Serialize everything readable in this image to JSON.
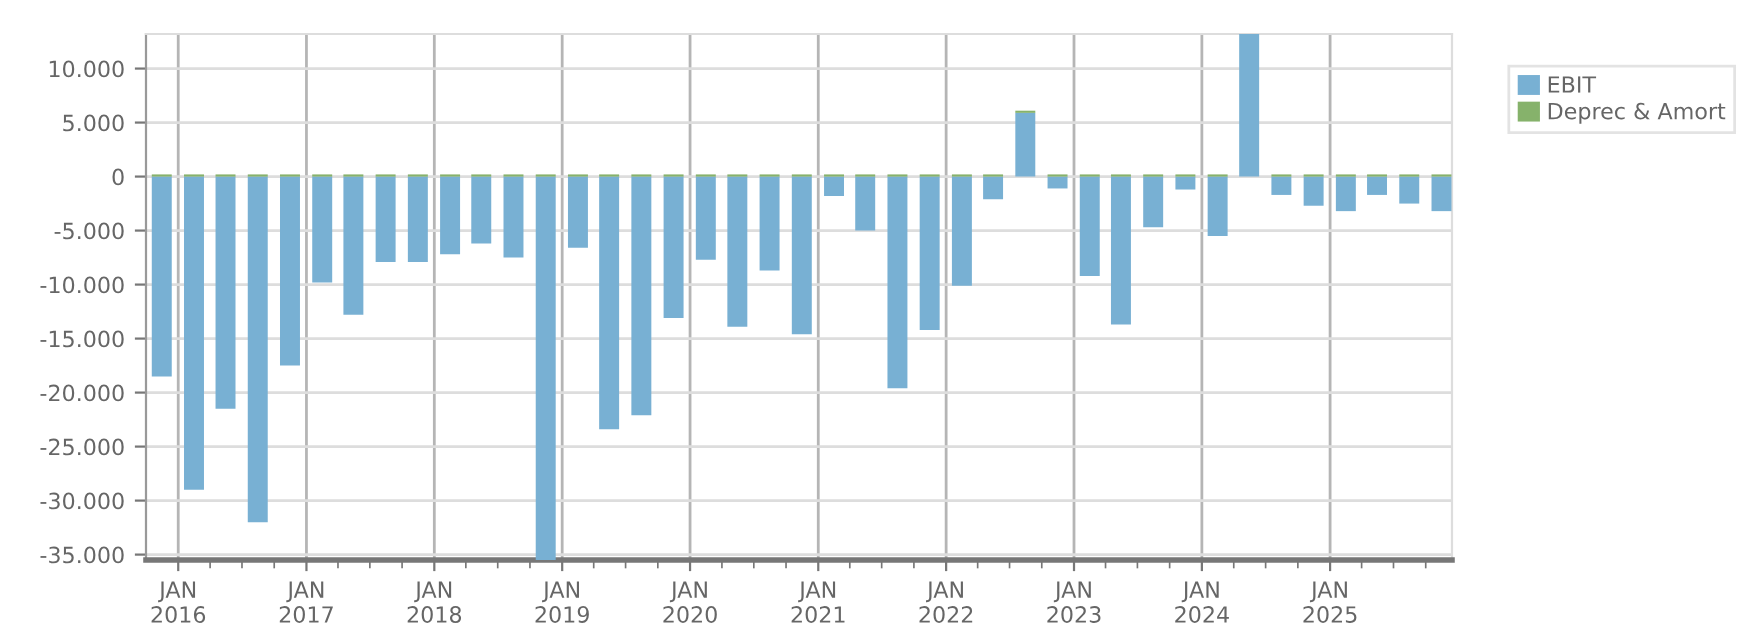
{
  "chart_data": {
    "type": "bar",
    "stacked": true,
    "x": [
      "2015-11-15",
      "2016-02-15",
      "2016-05-15",
      "2016-08-15",
      "2016-11-15",
      "2017-02-15",
      "2017-05-15",
      "2017-08-15",
      "2017-11-15",
      "2018-02-15",
      "2018-05-15",
      "2018-08-15",
      "2018-11-15",
      "2019-02-15",
      "2019-05-15",
      "2019-08-15",
      "2019-11-15",
      "2020-02-15",
      "2020-05-15",
      "2020-08-15",
      "2020-11-15",
      "2021-02-15",
      "2021-05-15",
      "2021-08-15",
      "2021-11-15",
      "2022-02-15",
      "2022-05-15",
      "2022-08-15",
      "2022-11-15",
      "2023-02-15",
      "2023-05-15",
      "2023-08-15",
      "2023-11-15",
      "2024-02-15",
      "2024-05-15",
      "2024-08-15",
      "2024-11-15",
      "2025-02-15",
      "2025-05-15",
      "2025-08-15",
      "2025-11-15"
    ],
    "series": [
      {
        "name": "EBIT",
        "color": "#78b0d3",
        "values": [
          -18500,
          -29000,
          -21500,
          -32000,
          -17500,
          -9800,
          -12800,
          -7900,
          -7900,
          -7200,
          -6200,
          -7500,
          -35500,
          -6600,
          -23400,
          -22100,
          -13100,
          -7700,
          -13900,
          -8700,
          -14600,
          -1800,
          -5000,
          -19600,
          -14200,
          -10100,
          -2100,
          5900,
          -1100,
          -9200,
          -13700,
          -4700,
          -1200,
          -5500,
          13200,
          -1700,
          -2700,
          -3200,
          -1700,
          -2500,
          -3200
        ]
      },
      {
        "name": "Deprec & Amort",
        "color": "#86b26b",
        "values": [
          200,
          200,
          200,
          200,
          200,
          200,
          200,
          200,
          200,
          200,
          200,
          200,
          200,
          200,
          200,
          200,
          200,
          200,
          200,
          200,
          200,
          200,
          200,
          200,
          200,
          200,
          200,
          200,
          200,
          200,
          200,
          200,
          200,
          200,
          null,
          200,
          200,
          200,
          200,
          200,
          200
        ]
      }
    ],
    "ylim": [
      -35500,
      13200
    ],
    "yticks": [
      {
        "value": -35000,
        "label": "-35.000"
      },
      {
        "value": -30000,
        "label": "-30.000"
      },
      {
        "value": -25000,
        "label": "-25.000"
      },
      {
        "value": -20000,
        "label": "-20.000"
      },
      {
        "value": -15000,
        "label": "-15.000"
      },
      {
        "value": -10000,
        "label": "-10.000"
      },
      {
        "value": -5000,
        "label": "-5.000"
      },
      0,
      {
        "value": 5000,
        "label": "5.000"
      },
      {
        "value": 10000,
        "label": "10.000"
      }
    ],
    "xlim": [
      "2015-10-01",
      "2025-12-15"
    ],
    "xticks": [
      {
        "value": "2016-01-01",
        "label": "JAN\n2016"
      },
      {
        "value": "2016-04-01",
        "label": null
      },
      {
        "value": "2016-07-01",
        "label": null
      },
      {
        "value": "2016-10-01",
        "label": null
      },
      {
        "value": "2017-01-01",
        "label": "JAN\n2017"
      },
      {
        "value": "2017-04-01",
        "label": null
      },
      {
        "value": "2017-07-01",
        "label": null
      },
      {
        "value": "2017-10-01",
        "label": null
      },
      {
        "value": "2018-01-01",
        "label": "JAN\n2018"
      },
      {
        "value": "2018-04-01",
        "label": null
      },
      {
        "value": "2018-07-01",
        "label": null
      },
      {
        "value": "2018-10-01",
        "label": null
      },
      {
        "value": "2019-01-01",
        "label": "JAN\n2019"
      },
      {
        "value": "2019-04-01",
        "label": null
      },
      {
        "value": "2019-07-01",
        "label": null
      },
      {
        "value": "2019-10-01",
        "label": null
      },
      {
        "value": "2020-01-01",
        "label": "JAN\n2020"
      },
      {
        "value": "2020-04-01",
        "label": null
      },
      {
        "value": "2020-07-01",
        "label": null
      },
      {
        "value": "2020-10-01",
        "label": null
      },
      {
        "value": "2021-01-01",
        "label": "JAN\n2021"
      },
      {
        "value": "2021-04-01",
        "label": null
      },
      {
        "value": "2021-07-01",
        "label": null
      },
      {
        "value": "2021-10-01",
        "label": null
      },
      {
        "value": "2022-01-01",
        "label": "JAN\n2022"
      },
      {
        "value": "2022-04-01",
        "label": null
      },
      {
        "value": "2022-07-01",
        "label": null
      },
      {
        "value": "2022-10-01",
        "label": null
      },
      {
        "value": "2023-01-01",
        "label": "JAN\n2023"
      },
      {
        "value": "2023-04-01",
        "label": null
      },
      {
        "value": "2023-07-01",
        "label": null
      },
      {
        "value": "2023-10-01",
        "label": null
      },
      {
        "value": "2024-01-01",
        "label": "JAN\n2024"
      },
      {
        "value": "2024-04-01",
        "label": null
      },
      {
        "value": "2024-07-01",
        "label": null
      },
      {
        "value": "2024-10-01",
        "label": null
      },
      {
        "value": "2025-01-01",
        "label": "JAN\n2025"
      },
      {
        "value": "2025-04-01",
        "label": null
      },
      {
        "value": "2025-07-01",
        "label": null
      },
      {
        "value": "2025-10-01",
        "label": null
      }
    ],
    "grid": true,
    "legend": "top right"
  }
}
